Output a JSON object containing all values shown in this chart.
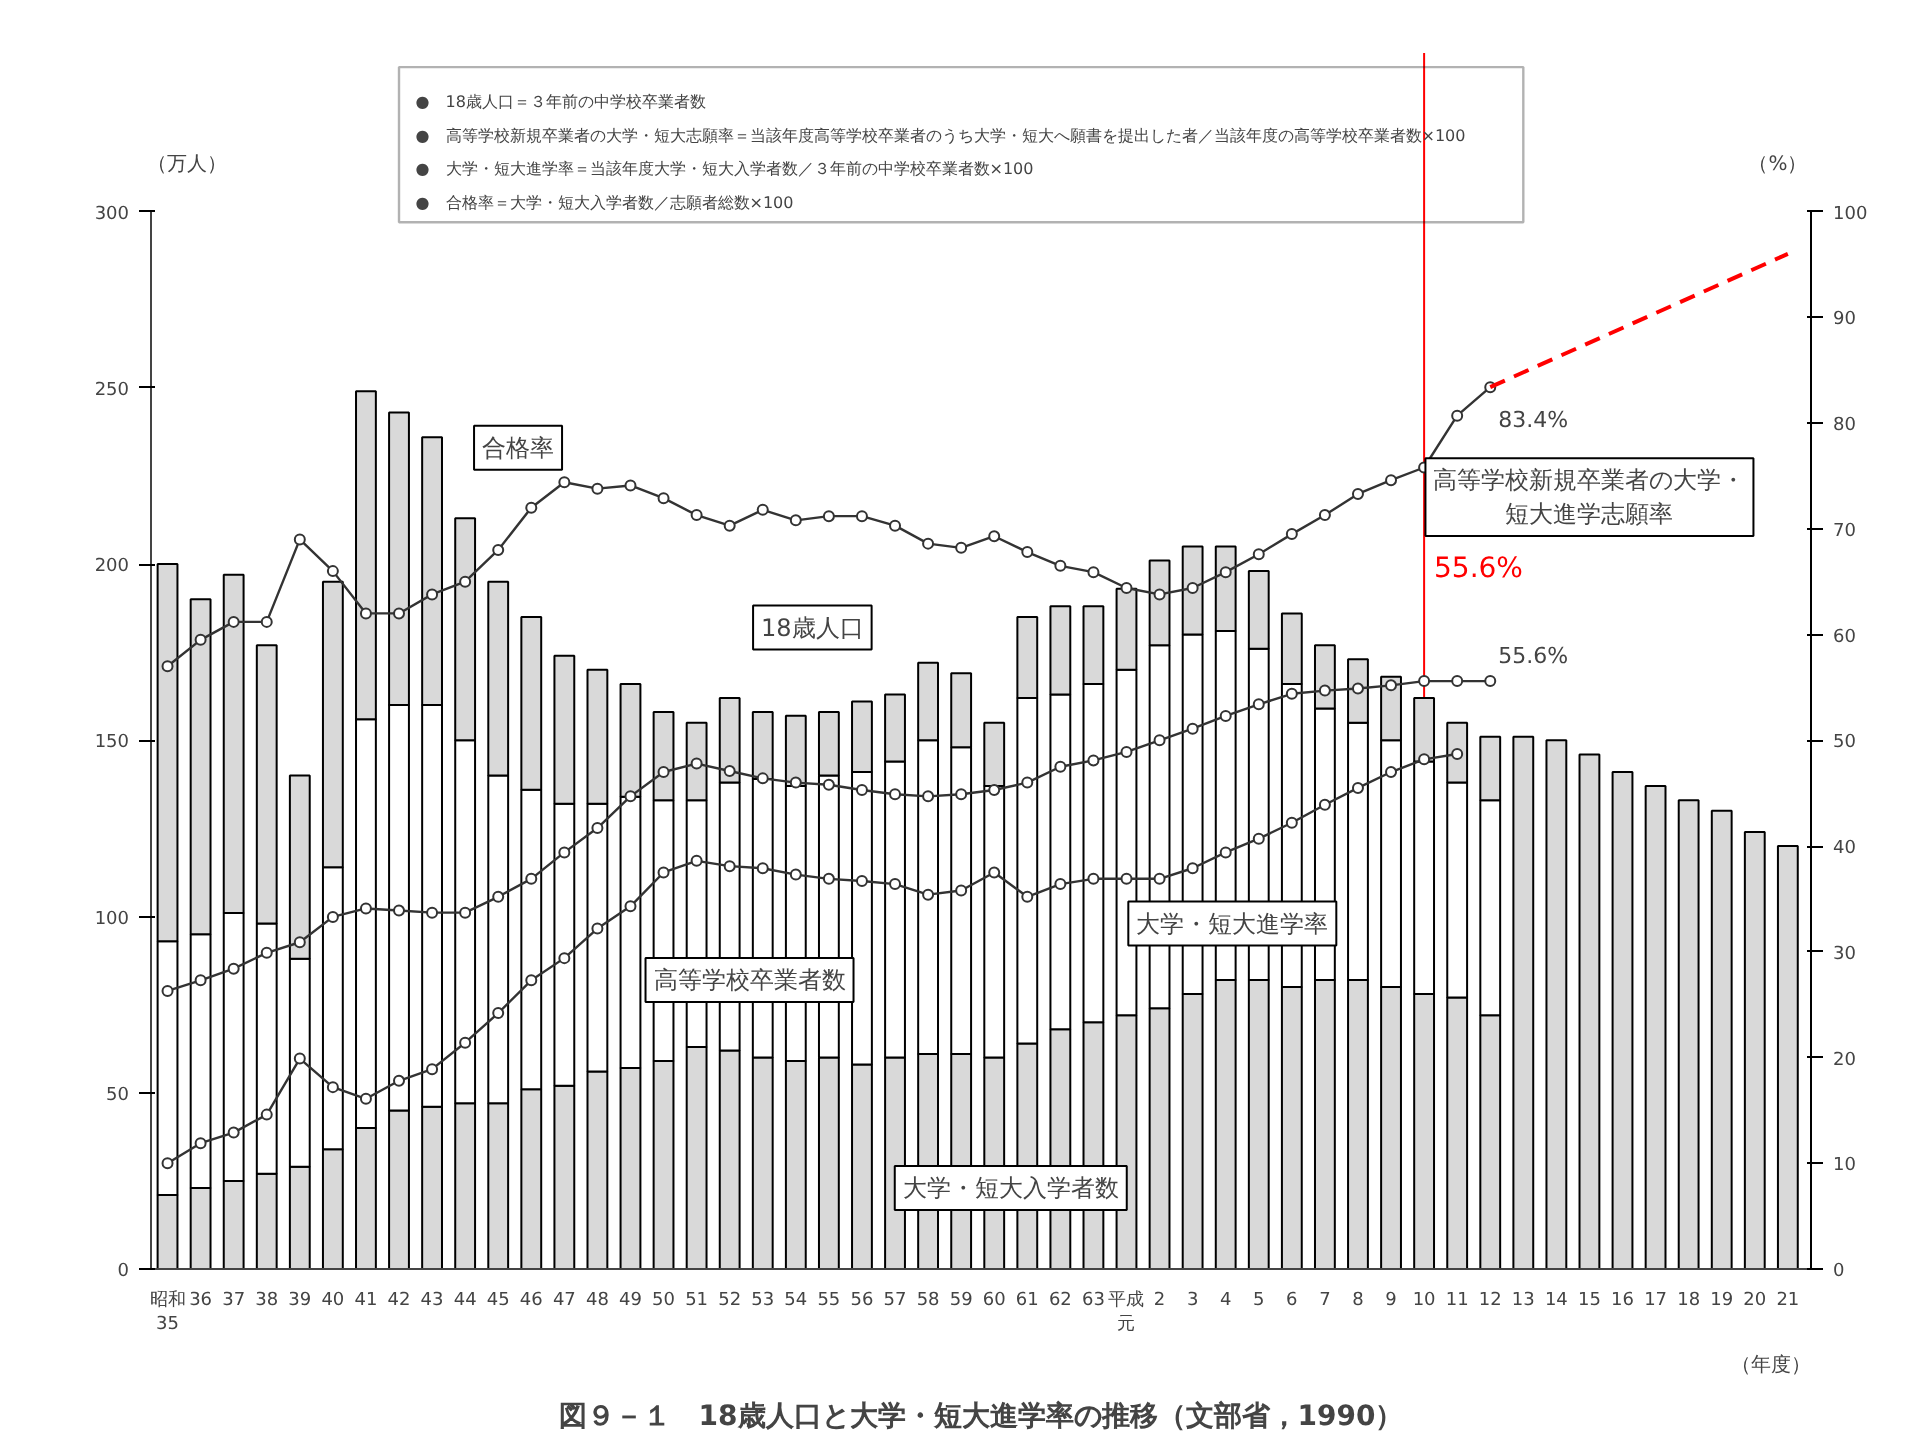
{
  "chart_data": {
    "type": "bar",
    "stacked": true,
    "title": "図９－１　18歳人口と大学・短大進学率の推移（文部省，1990）",
    "xlabel": "（年度）",
    "ylabel": "（万人）",
    "y2label": "（%）",
    "categories": [
      "昭和35",
      "36",
      "37",
      "38",
      "39",
      "40",
      "41",
      "42",
      "43",
      "44",
      "45",
      "46",
      "47",
      "48",
      "49",
      "50",
      "51",
      "52",
      "53",
      "54",
      "55",
      "56",
      "57",
      "58",
      "59",
      "60",
      "61",
      "62",
      "63",
      "平成元",
      "2",
      "3",
      "4",
      "5",
      "6",
      "7",
      "8",
      "9",
      "10",
      "11",
      "12",
      "13",
      "14",
      "15",
      "16",
      "17",
      "18",
      "19",
      "20",
      "21"
    ],
    "series": [
      {
        "color": "#d9d9d9",
        "values": [
          21,
          23,
          25,
          27,
          29,
          34,
          40,
          45,
          46,
          47,
          47,
          51,
          52,
          56,
          57,
          59,
          63,
          62,
          60,
          59,
          60,
          58,
          60,
          61,
          61,
          60,
          64,
          68,
          70,
          72,
          74,
          78,
          82,
          82,
          80,
          82,
          82,
          80,
          78,
          77,
          72,
          null,
          null,
          null,
          null,
          null,
          null,
          null,
          null,
          null
        ]
      },
      {
        "color": "#ffffff",
        "values": [
          72,
          72,
          76,
          71,
          59,
          80,
          116,
          115,
          114,
          103,
          93,
          85,
          80,
          76,
          77,
          74,
          70,
          76,
          79,
          78,
          80,
          83,
          84,
          89,
          87,
          77,
          98,
          95,
          96,
          98,
          103,
          102,
          99,
          94,
          86,
          77,
          73,
          70,
          66,
          61,
          61,
          null,
          null,
          null,
          null,
          null,
          null,
          null,
          null,
          null
        ]
      },
      {
        "color": "#d9d9d9",
        "values": [
          107,
          95,
          96,
          79,
          52,
          81,
          93,
          83,
          76,
          63,
          55,
          49,
          42,
          38,
          32,
          25,
          22,
          24,
          19,
          20,
          18,
          20,
          19,
          22,
          21,
          18,
          23,
          25,
          22,
          23,
          24,
          25,
          24,
          22,
          20,
          18,
          18,
          18,
          18,
          17,
          18,
          151,
          150,
          146,
          141,
          137,
          133,
          130,
          124,
          120
        ]
      },
      {
        "type": "line",
        "axis": "y2",
        "color": "#333333",
        "values": [
          57.0,
          59.5,
          61.2,
          61.2,
          69.0,
          66.0,
          62.0,
          62.0,
          63.8,
          65.0,
          68.0,
          72.0,
          74.4,
          73.8,
          74.1,
          72.9,
          71.3,
          70.3,
          71.8,
          70.8,
          71.2,
          71.2,
          70.3,
          68.6,
          68.2,
          69.3,
          67.8,
          66.5,
          65.9,
          64.4,
          63.8,
          64.4,
          65.9,
          67.6,
          69.5,
          71.3,
          73.3,
          74.6,
          75.8,
          80.7,
          83.4,
          null,
          null,
          null,
          null,
          null,
          null,
          null,
          null,
          null
        ]
      },
      {
        "type": "line",
        "axis": "y2",
        "color": "#333333",
        "values": [
          26.3,
          27.3,
          28.4,
          29.9,
          30.9,
          33.3,
          34.1,
          33.9,
          33.7,
          33.7,
          35.2,
          36.9,
          39.4,
          41.7,
          44.7,
          47.0,
          47.8,
          47.1,
          46.4,
          46.0,
          45.8,
          45.3,
          44.9,
          44.7,
          44.9,
          45.3,
          46.0,
          47.5,
          48.1,
          48.9,
          50.0,
          51.1,
          52.3,
          53.4,
          54.4,
          54.7,
          54.9,
          55.2,
          55.6,
          55.6,
          55.6,
          null,
          null,
          null,
          null,
          null,
          null,
          null,
          null,
          null
        ]
      },
      {
        "type": "line",
        "axis": "y2",
        "color": "#333333",
        "values": [
          10.0,
          11.9,
          12.9,
          14.6,
          19.9,
          17.2,
          16.1,
          17.8,
          18.9,
          21.4,
          24.2,
          27.3,
          29.4,
          32.2,
          34.3,
          37.5,
          38.6,
          38.1,
          37.9,
          37.3,
          36.9,
          36.7,
          36.4,
          35.4,
          35.8,
          37.5,
          35.2,
          36.4,
          36.9,
          36.9,
          36.9,
          37.9,
          39.4,
          40.7,
          42.2,
          43.9,
          45.5,
          47.0,
          48.2,
          48.7,
          null,
          null,
          null,
          null,
          null,
          null,
          null,
          null,
          null,
          null
        ]
      },
      {
        "type": "line",
        "axis": "y2",
        "color": "#ff0000",
        "x": [
          "12",
          "21"
        ],
        "values": [
          83.4,
          96
        ],
        "line_style": "dashed",
        "marker": "none"
      }
    ],
    "ylim": [
      0,
      300
    ],
    "yticks": [
      0,
      50,
      100,
      150,
      200,
      250,
      300
    ],
    "y2lim": [
      0,
      100
    ],
    "y2ticks": [
      0,
      10,
      20,
      30,
      40,
      50,
      60,
      70,
      80,
      90,
      100
    ],
    "marker": "circle",
    "grid": false,
    "ref_lines": [
      {
        "axis": "x",
        "value": "10",
        "label": "55.6%",
        "color": "#ff0000"
      }
    ],
    "annotations": [
      "●　18歳人口＝３年前の中学校卒業者数",
      "●　高等学校新規卒業者の大学・短大志願率＝当該年度高等学校卒業者のうち大学・短大へ願書を提出した者／当該年度の高等学校卒業者数×100",
      "●　大学・短大進学率＝当該年度大学・短大入学者数／３年前の中学校卒業者数×100",
      "●　合格率＝大学・短大入学者数／志願者総数×100",
      "合格率",
      "18歳人口",
      "高等学校卒業者数",
      "大学・短大進学率",
      "大学・短大入学者数",
      "高等学校新規卒業者の大学・短大進学志願率",
      "83.4%",
      "55.6%"
    ]
  }
}
